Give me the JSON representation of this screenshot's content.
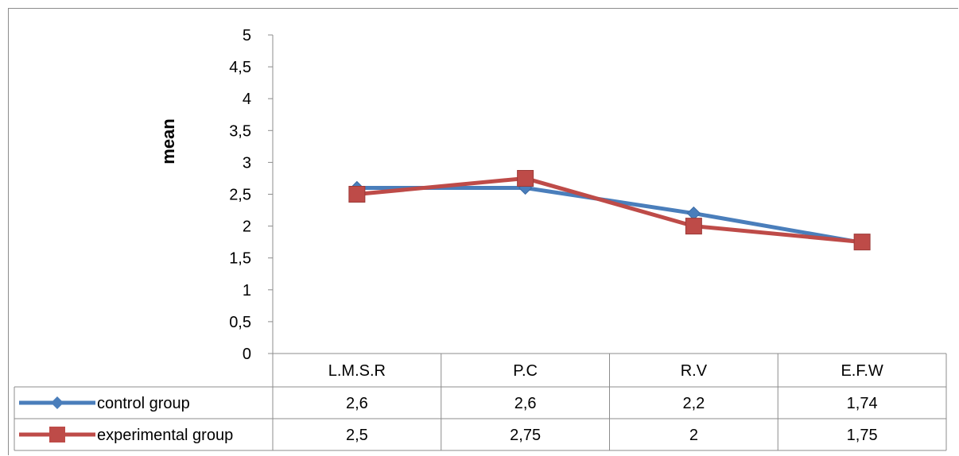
{
  "chart_data": {
    "type": "line",
    "ylabel": "mean",
    "xlabel": "",
    "ylim": [
      0,
      5
    ],
    "yticks": [
      "0",
      "0,5",
      "1",
      "1,5",
      "2",
      "2,5",
      "3",
      "3,5",
      "4",
      "4,5",
      "5"
    ],
    "categories": [
      "L.M.S.R",
      "P.C",
      "R.V",
      "E.F.W"
    ],
    "grid": false,
    "legend": "data-table",
    "series": [
      {
        "name": "control group",
        "color": "#4a7ebb",
        "marker": "diamond",
        "values": [
          2.6,
          2.6,
          2.2,
          1.74
        ],
        "labels": [
          "2,6",
          "2,6",
          "2,2",
          "1,74"
        ]
      },
      {
        "name": "experimental group",
        "color": "#be4b48",
        "marker": "square",
        "values": [
          2.5,
          2.75,
          2,
          1.75
        ],
        "labels": [
          "2,5",
          "2,75",
          "2",
          "1,75"
        ]
      }
    ]
  }
}
